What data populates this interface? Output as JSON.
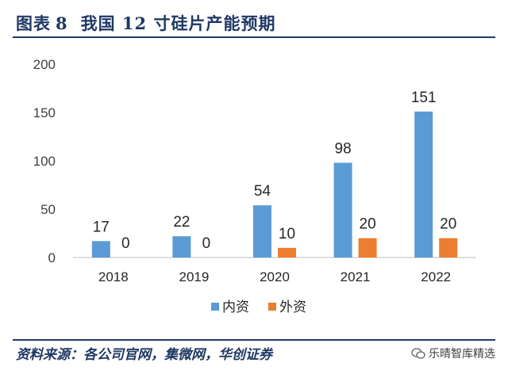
{
  "header": {
    "figure_label": "图表",
    "figure_number": "8",
    "title": "我国 12 寸硅片产能预期"
  },
  "chart_data": {
    "type": "bar",
    "categories": [
      "2018",
      "2019",
      "2020",
      "2021",
      "2022"
    ],
    "series": [
      {
        "name": "内资",
        "values": [
          17,
          22,
          54,
          98,
          151
        ],
        "color": "#5b9bd5"
      },
      {
        "name": "外资",
        "values": [
          0,
          0,
          10,
          20,
          20
        ],
        "color": "#ed7d31"
      }
    ],
    "yticks": [
      "0",
      "50",
      "100",
      "150",
      "200"
    ],
    "ylim": [
      0,
      200
    ],
    "legend_position": "bottom",
    "grid": false
  },
  "footer": {
    "source": "资料来源：各公司官网，集微网，华创证券",
    "watermark": "乐晴智库精选",
    "watermark_icon": "wechat-icon"
  }
}
